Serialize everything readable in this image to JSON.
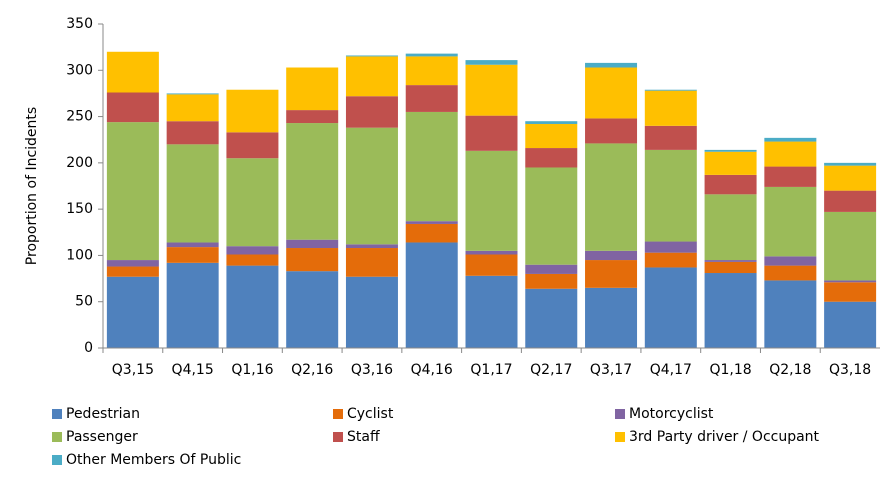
{
  "chart_data": {
    "type": "stacked_bar",
    "ylabel": "Proportion of Incidents",
    "categories": [
      "Q3,15",
      "Q4,15",
      "Q1,16",
      "Q2,16",
      "Q3,16",
      "Q4,16",
      "Q1,17",
      "Q2,17",
      "Q3,17",
      "Q4,17",
      "Q1,18",
      "Q2,18",
      "Q3,18"
    ],
    "series": [
      {
        "name": "Pedestrian",
        "color": "#4f81bd",
        "values": [
          77,
          92,
          89,
          83,
          77,
          114,
          78,
          64,
          65,
          87,
          81,
          73,
          50
        ]
      },
      {
        "name": "Cyclist",
        "color": "#e46c0a",
        "values": [
          11,
          17,
          12,
          25,
          31,
          20,
          23,
          16,
          30,
          16,
          12,
          16,
          21
        ]
      },
      {
        "name": "Motorcyclist",
        "color": "#8064a2",
        "values": [
          7,
          5,
          9,
          9,
          4,
          3,
          4,
          10,
          10,
          12,
          2,
          10,
          2
        ]
      },
      {
        "name": "Passenger",
        "color": "#9bbb59",
        "values": [
          149,
          106,
          95,
          126,
          126,
          118,
          108,
          105,
          116,
          99,
          71,
          75,
          74
        ]
      },
      {
        "name": "Staff",
        "color": "#c0504d",
        "values": [
          32,
          25,
          28,
          14,
          34,
          29,
          38,
          21,
          27,
          26,
          21,
          22,
          23
        ]
      },
      {
        "name": "3rd Party driver / Occupant",
        "color": "#ffc000",
        "values": [
          44,
          29,
          46,
          46,
          43,
          31,
          55,
          26,
          55,
          38,
          25,
          27,
          27
        ]
      },
      {
        "name": "Other Members Of Public",
        "color": "#4bacc6",
        "values": [
          0,
          1,
          0,
          0,
          1,
          3,
          5,
          3,
          5,
          1,
          2,
          4,
          3
        ]
      }
    ],
    "ylim": [
      0,
      350
    ],
    "yticks": [
      0,
      50,
      100,
      150,
      200,
      250,
      300,
      350
    ],
    "grid": false
  }
}
